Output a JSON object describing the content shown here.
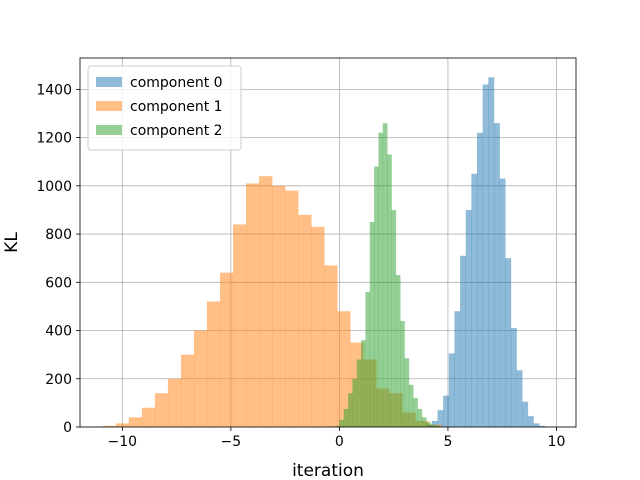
{
  "chart_data": {
    "type": "histogram",
    "title": "",
    "xlabel": "iteration",
    "ylabel": "KL",
    "xlim": [
      -11.95,
      10.9
    ],
    "ylim": [
      0,
      1530
    ],
    "grid": true,
    "legend_position": "top-left",
    "x_ticks": [
      -10,
      -5,
      0,
      5,
      10
    ],
    "y_ticks": [
      0,
      200,
      400,
      600,
      800,
      1000,
      1200,
      1400
    ],
    "series": [
      {
        "name": "component 0",
        "color": "#1f77b4",
        "bin_start": 4.0,
        "bin_width": 0.26,
        "counts": [
          10,
          25,
          70,
          130,
          305,
          480,
          710,
          900,
          1050,
          1220,
          1420,
          1450,
          1260,
          1030,
          700,
          410,
          235,
          105,
          45,
          15,
          5
        ]
      },
      {
        "name": "component 1",
        "color": "#ff7f0e",
        "bin_start": -10.9,
        "bin_width": 0.6,
        "counts": [
          5,
          15,
          40,
          80,
          140,
          200,
          300,
          400,
          520,
          640,
          840,
          1010,
          1040,
          1000,
          980,
          880,
          830,
          670,
          480,
          350,
          280,
          160,
          140,
          60,
          25,
          10
        ]
      },
      {
        "name": "component 2",
        "color": "#2ca02c",
        "bin_start": -0.2,
        "bin_width": 0.2,
        "counts": [
          5,
          30,
          75,
          140,
          200,
          280,
          360,
          560,
          850,
          1080,
          1220,
          1260,
          1130,
          900,
          630,
          440,
          285,
          175,
          120,
          75,
          40,
          20,
          10,
          5
        ]
      }
    ]
  }
}
